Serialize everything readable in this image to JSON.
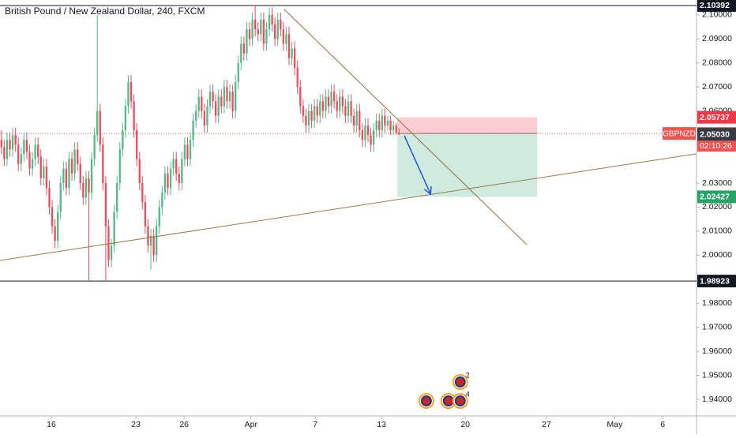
{
  "chart_data": {
    "type": "candlestick",
    "title": "British Pound / New Zealand Dollar, 240, FXCM",
    "up_color": "#53b987",
    "down_color": "#eb4d5c",
    "xlim": [
      0,
      247
    ],
    "ylim": [
      1.9331,
      2.1062
    ],
    "grid": false,
    "xticks": [
      {
        "value": 18.2,
        "label": "16"
      },
      {
        "value": 48.2,
        "label": "23"
      },
      {
        "value": 65.3,
        "label": "26"
      },
      {
        "value": 89,
        "label": "Apr"
      },
      {
        "value": 111.8,
        "label": "7"
      },
      {
        "value": 135.3,
        "label": "13"
      },
      {
        "value": 165,
        "label": "20"
      },
      {
        "value": 193.8,
        "label": "27"
      },
      {
        "value": 218,
        "label": "May"
      },
      {
        "value": 235,
        "label": "6"
      }
    ],
    "yticks": [
      {
        "value": 2.1,
        "label": "2.10000"
      },
      {
        "value": 2.09,
        "label": "2.09000"
      },
      {
        "value": 2.08,
        "label": "2.08000"
      },
      {
        "value": 2.07,
        "label": "2.07000"
      },
      {
        "value": 2.06,
        "label": "2.06000"
      },
      {
        "value": 2.03,
        "label": "2.03000"
      },
      {
        "value": 2.02,
        "label": "2.02000"
      },
      {
        "value": 2.01,
        "label": "2.01000"
      },
      {
        "value": 2,
        "label": "2.00000"
      },
      {
        "value": 1.98,
        "label": "1.98000"
      },
      {
        "value": 1.97,
        "label": "1.97000"
      },
      {
        "value": 1.96,
        "label": "1.96000"
      },
      {
        "value": 1.95,
        "label": "1.95000"
      },
      {
        "value": 1.94,
        "label": "1.94000"
      }
    ],
    "candles": [
      [
        2.048,
        2.052,
        2.042,
        2.045
      ],
      [
        2.045,
        2.048,
        2.037,
        2.04
      ],
      [
        2.04,
        2.051,
        2.037,
        2.048
      ],
      [
        2.048,
        2.051,
        2.041,
        2.044
      ],
      [
        2.044,
        2.053,
        2.041,
        2.05
      ],
      [
        2.05,
        2.053,
        2.043,
        2.046
      ],
      [
        2.046,
        2.049,
        2.035,
        2.038
      ],
      [
        2.038,
        2.045,
        2.035,
        2.042
      ],
      [
        2.042,
        2.051,
        2.039,
        2.048
      ],
      [
        2.048,
        2.051,
        2.04,
        2.043
      ],
      [
        2.043,
        2.046,
        2.033,
        2.036
      ],
      [
        2.036,
        2.043,
        2.033,
        2.04
      ],
      [
        2.04,
        2.049,
        2.037,
        2.046
      ],
      [
        2.046,
        2.049,
        2.038,
        2.041
      ],
      [
        2.041,
        2.044,
        2.029,
        2.032
      ],
      [
        2.032,
        2.04,
        2.029,
        2.037
      ],
      [
        2.037,
        2.04,
        2.025,
        2.028
      ],
      [
        2.028,
        2.031,
        2.017,
        2.02
      ],
      [
        2.02,
        2.023,
        2.009,
        2.012
      ],
      [
        2.012,
        2.015,
        2.003,
        2.006
      ],
      [
        2.006,
        2.021,
        2.003,
        2.018
      ],
      [
        2.018,
        2.033,
        2.015,
        2.03
      ],
      [
        2.03,
        2.039,
        2.027,
        2.036
      ],
      [
        2.036,
        2.039,
        2.025,
        2.028
      ],
      [
        2.028,
        2.043,
        2.025,
        2.04
      ],
      [
        2.04,
        2.043,
        2.031,
        2.034
      ],
      [
        2.034,
        2.047,
        2.031,
        2.044
      ],
      [
        2.044,
        2.047,
        2.035,
        2.038
      ],
      [
        2.038,
        2.041,
        2.027,
        2.03
      ],
      [
        2.03,
        2.033,
        2.021,
        2.024
      ],
      [
        2.024,
        2.035,
        2.021,
        2.032
      ],
      [
        2.032,
        2.035,
        1.989,
        2.026
      ],
      [
        2.026,
        2.043,
        2.023,
        2.04
      ],
      [
        2.04,
        2.053,
        2.037,
        2.05
      ],
      [
        2.05,
        2.1,
        2.047,
        2.06
      ],
      [
        2.06,
        2.063,
        2.043,
        2.046
      ],
      [
        2.046,
        2.049,
        2.027,
        2.03
      ],
      [
        2.03,
        2.033,
        1.989,
        2.012
      ],
      [
        2.012,
        2.015,
        1.995,
        1.998
      ],
      [
        1.998,
        2.007,
        1.995,
        2.004
      ],
      [
        2.004,
        2.021,
        2.001,
        2.018
      ],
      [
        2.018,
        2.033,
        2.015,
        2.03
      ],
      [
        2.03,
        2.047,
        2.027,
        2.044
      ],
      [
        2.044,
        2.055,
        2.041,
        2.052
      ],
      [
        2.052,
        2.065,
        2.049,
        2.062
      ],
      [
        2.062,
        2.075,
        2.059,
        2.072
      ],
      [
        2.072,
        2.075,
        2.061,
        2.064
      ],
      [
        2.064,
        2.067,
        2.049,
        2.052
      ],
      [
        2.052,
        2.055,
        2.037,
        2.04
      ],
      [
        2.04,
        2.043,
        2.027,
        2.03
      ],
      [
        2.03,
        2.033,
        2.019,
        2.022
      ],
      [
        2.022,
        2.025,
        2.009,
        2.012
      ],
      [
        2.012,
        2.015,
        2.001,
        2.004
      ],
      [
        2.004,
        2.011,
        1.994,
        2.008
      ],
      [
        2.008,
        2.011,
        1.997,
        2.0
      ],
      [
        2.0,
        2.015,
        1.997,
        2.012
      ],
      [
        2.012,
        2.023,
        2.009,
        2.02
      ],
      [
        2.02,
        2.029,
        2.017,
        2.026
      ],
      [
        2.026,
        2.037,
        2.023,
        2.034
      ],
      [
        2.034,
        2.037,
        2.025,
        2.028
      ],
      [
        2.028,
        2.039,
        2.025,
        2.036
      ],
      [
        2.036,
        2.043,
        2.033,
        2.04
      ],
      [
        2.04,
        2.043,
        2.031,
        2.034
      ],
      [
        2.034,
        2.037,
        2.027,
        2.03
      ],
      [
        2.03,
        2.043,
        2.027,
        2.04
      ],
      [
        2.04,
        2.049,
        2.037,
        2.046
      ],
      [
        2.046,
        2.049,
        2.037,
        2.04
      ],
      [
        2.04,
        2.051,
        2.037,
        2.048
      ],
      [
        2.048,
        2.059,
        2.045,
        2.056
      ],
      [
        2.056,
        2.063,
        2.053,
        2.06
      ],
      [
        2.06,
        2.069,
        2.057,
        2.066
      ],
      [
        2.066,
        2.069,
        2.057,
        2.06
      ],
      [
        2.06,
        2.063,
        2.051,
        2.054
      ],
      [
        2.054,
        2.065,
        2.051,
        2.062
      ],
      [
        2.062,
        2.071,
        2.059,
        2.068
      ],
      [
        2.068,
        2.071,
        2.061,
        2.064
      ],
      [
        2.064,
        2.067,
        2.055,
        2.058
      ],
      [
        2.058,
        2.069,
        2.055,
        2.066
      ],
      [
        2.066,
        2.069,
        2.059,
        2.062
      ],
      [
        2.062,
        2.073,
        2.059,
        2.07
      ],
      [
        2.07,
        2.073,
        2.061,
        2.064
      ],
      [
        2.064,
        2.071,
        2.061,
        2.068
      ],
      [
        2.068,
        2.071,
        2.057,
        2.06
      ],
      [
        2.06,
        2.075,
        2.057,
        2.072
      ],
      [
        2.072,
        2.083,
        2.069,
        2.08
      ],
      [
        2.08,
        2.091,
        2.077,
        2.088
      ],
      [
        2.088,
        2.091,
        2.081,
        2.084
      ],
      [
        2.084,
        2.097,
        2.081,
        2.094
      ],
      [
        2.094,
        2.097,
        2.087,
        2.09
      ],
      [
        2.09,
        2.101,
        2.087,
        2.098
      ],
      [
        2.098,
        2.104,
        2.091,
        2.094
      ],
      [
        2.094,
        2.097,
        2.089,
        2.092
      ],
      [
        2.092,
        2.101,
        2.089,
        2.098
      ],
      [
        2.098,
        2.101,
        2.085,
        2.088
      ],
      [
        2.088,
        2.097,
        2.085,
        2.094
      ],
      [
        2.094,
        2.103,
        2.091,
        2.1
      ],
      [
        2.1,
        2.103,
        2.093,
        2.096
      ],
      [
        2.096,
        2.099,
        2.087,
        2.09
      ],
      [
        2.09,
        2.101,
        2.087,
        2.098
      ],
      [
        2.098,
        2.101,
        2.091,
        2.094
      ],
      [
        2.094,
        2.097,
        2.085,
        2.088
      ],
      [
        2.088,
        2.095,
        2.085,
        2.092
      ],
      [
        2.092,
        2.095,
        2.079,
        2.082
      ],
      [
        2.082,
        2.089,
        2.079,
        2.086
      ],
      [
        2.086,
        2.089,
        2.075,
        2.078
      ],
      [
        2.078,
        2.081,
        2.067,
        2.07
      ],
      [
        2.07,
        2.073,
        2.059,
        2.062
      ],
      [
        2.062,
        2.065,
        2.055,
        2.058
      ],
      [
        2.058,
        2.061,
        2.051,
        2.054
      ],
      [
        2.054,
        2.063,
        2.051,
        2.06
      ],
      [
        2.06,
        2.063,
        2.053,
        2.056
      ],
      [
        2.056,
        2.065,
        2.053,
        2.062
      ],
      [
        2.062,
        2.065,
        2.055,
        2.058
      ],
      [
        2.058,
        2.067,
        2.055,
        2.064
      ],
      [
        2.064,
        2.067,
        2.057,
        2.06
      ],
      [
        2.06,
        2.069,
        2.057,
        2.066
      ],
      [
        2.066,
        2.069,
        2.059,
        2.062
      ],
      [
        2.062,
        2.071,
        2.059,
        2.068
      ],
      [
        2.068,
        2.071,
        2.061,
        2.064
      ],
      [
        2.064,
        2.067,
        2.057,
        2.06
      ],
      [
        2.06,
        2.069,
        2.057,
        2.066
      ],
      [
        2.066,
        2.069,
        2.059,
        2.062
      ],
      [
        2.062,
        2.065,
        2.055,
        2.058
      ],
      [
        2.058,
        2.067,
        2.055,
        2.064
      ],
      [
        2.064,
        2.067,
        2.055,
        2.058
      ],
      [
        2.058,
        2.061,
        2.051,
        2.054
      ],
      [
        2.054,
        2.063,
        2.051,
        2.06
      ],
      [
        2.06,
        2.063,
        2.049,
        2.052
      ],
      [
        2.052,
        2.055,
        2.045,
        2.048
      ],
      [
        2.048,
        2.057,
        2.045,
        2.054
      ],
      [
        2.054,
        2.057,
        2.047,
        2.05
      ],
      [
        2.05,
        2.053,
        2.043,
        2.046
      ],
      [
        2.046,
        2.055,
        2.043,
        2.052
      ],
      [
        2.052,
        2.059,
        2.049,
        2.056
      ],
      [
        2.056,
        2.059,
        2.049,
        2.052
      ],
      [
        2.052,
        2.061,
        2.049,
        2.058
      ],
      [
        2.058,
        2.061,
        2.051,
        2.054
      ],
      [
        2.054,
        2.058,
        2.052,
        2.056
      ],
      [
        2.056,
        2.058,
        2.05,
        2.052
      ],
      [
        2.052,
        2.056,
        2.05,
        2.054
      ],
      [
        2.054,
        2.055,
        2.05,
        2.051
      ],
      [
        2.051,
        2.053,
        2.05,
        2.05065
      ]
    ],
    "levels": [
      {
        "value": 2.10392,
        "color": "#131722"
      },
      {
        "value": 1.98923,
        "color": "#131722"
      }
    ],
    "current_price": {
      "symbol": "GBPNZD",
      "value": 2.05065,
      "countdown": "02:10:26",
      "color": "#ef5350"
    },
    "marker_labels": [
      {
        "value": 2.0503,
        "label": "2.05030",
        "color": "#363a45"
      }
    ],
    "position": {
      "start": 140.9,
      "end": 190.5,
      "entry": 2.05065,
      "stop": 2.05737,
      "target": 2.02427,
      "stop_color": "#f23645",
      "target_color": "#26a269"
    },
    "trendlines": [
      {
        "start": [
          100.8,
          2.1023
        ],
        "end": [
          186.8,
          2.0044
        ],
        "color": "#8d6e47"
      },
      {
        "start": [
          0,
          1.9978
        ],
        "end": [
          247,
          2.0422
        ],
        "color": "#a0784a"
      }
    ],
    "arrow": {
      "start": [
        143.4,
        2.0497
      ],
      "end": [
        152.7,
        2.0254
      ],
      "color": "#1e53e5"
    },
    "events": [
      {
        "x": 151.2
      },
      {
        "x": 159
      },
      {
        "x": 163.2,
        "count": 2
      },
      {
        "x": 163.2,
        "count": 4
      }
    ]
  }
}
